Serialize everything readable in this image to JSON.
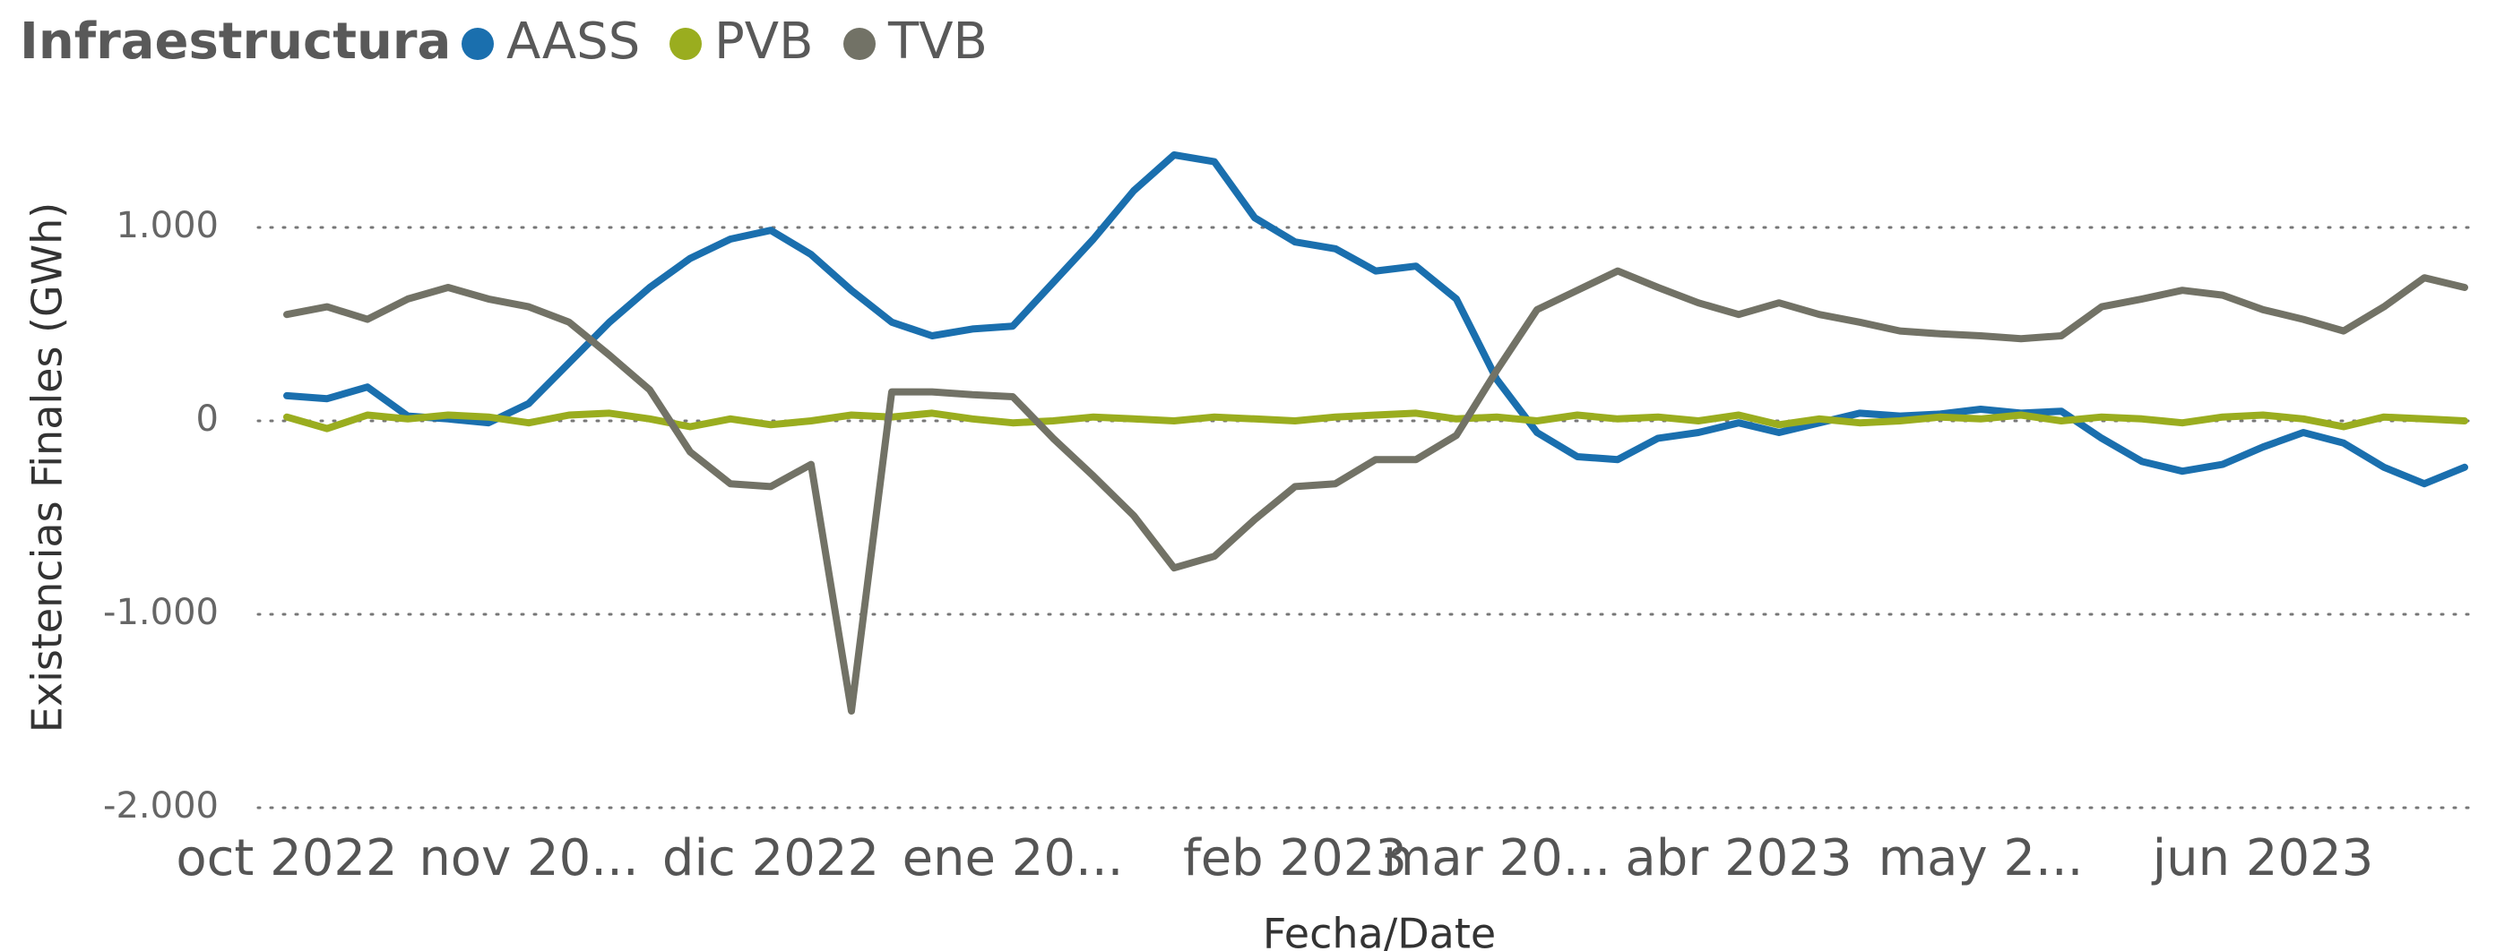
{
  "chart_data": {
    "type": "line",
    "legend_title": "Infraestructura",
    "xlabel": "Fecha/Date",
    "ylabel": "Existencias Finales (GWh)",
    "categories": [
      "oct 2022",
      null,
      null,
      null,
      null,
      null,
      "nov 20...",
      null,
      null,
      null,
      null,
      null,
      "dic 2022",
      null,
      null,
      null,
      null,
      null,
      "ene 20...",
      null,
      null,
      null,
      null,
      null,
      null,
      "feb 2023",
      null,
      null,
      null,
      null,
      "mar 20...",
      null,
      null,
      null,
      null,
      null,
      "abr 2023",
      null,
      null,
      null,
      null,
      null,
      "may 2...",
      null,
      null,
      null,
      null,
      null,
      null,
      "jun 2023",
      null,
      null,
      null,
      null,
      null
    ],
    "series": [
      {
        "name": "AASS",
        "color": "#1a6fae",
        "values": [
          130,
          115,
          175,
          25,
          10,
          -10,
          90,
          300,
          510,
          690,
          840,
          940,
          985,
          860,
          675,
          510,
          440,
          475,
          490,
          715,
          940,
          1190,
          1375,
          1340,
          1050,
          925,
          890,
          775,
          800,
          630,
          215,
          -60,
          -185,
          -200,
          -90,
          -60,
          -10,
          -60,
          -10,
          40,
          25,
          35,
          60,
          40,
          50,
          -90,
          -210,
          -260,
          -225,
          -135,
          -60,
          -115,
          -240,
          -325,
          -240
        ]
      },
      {
        "name": "PVB",
        "color": "#9aad1f",
        "values": [
          20,
          -40,
          30,
          10,
          30,
          20,
          -10,
          30,
          40,
          10,
          -30,
          10,
          -20,
          0,
          30,
          20,
          40,
          10,
          -10,
          0,
          20,
          10,
          0,
          20,
          10,
          0,
          20,
          30,
          40,
          10,
          20,
          0,
          30,
          10,
          20,
          0,
          30,
          -20,
          10,
          -10,
          0,
          20,
          10,
          30,
          0,
          20,
          10,
          -10,
          20,
          30,
          10,
          -30,
          20,
          10,
          0
        ]
      },
      {
        "name": "TVB",
        "color": "#727266",
        "values": [
          550,
          590,
          525,
          630,
          690,
          630,
          590,
          510,
          340,
          160,
          -160,
          -325,
          -340,
          -225,
          -1500,
          150,
          150,
          135,
          125,
          -90,
          -285,
          -490,
          -760,
          -700,
          -510,
          -340,
          -325,
          -200,
          -200,
          -75,
          260,
          575,
          675,
          775,
          690,
          610,
          550,
          610,
          550,
          510,
          465,
          450,
          440,
          425,
          440,
          590,
          630,
          675,
          650,
          575,
          525,
          465,
          590,
          740,
          690
        ]
      }
    ],
    "ylim": [
      -2000,
      1500
    ],
    "yticks": [
      {
        "value": -2000,
        "label": "-2.000"
      },
      {
        "value": -1000,
        "label": "-1.000"
      },
      0,
      {
        "value": 1000,
        "label": "1.000"
      }
    ],
    "grid": true
  }
}
